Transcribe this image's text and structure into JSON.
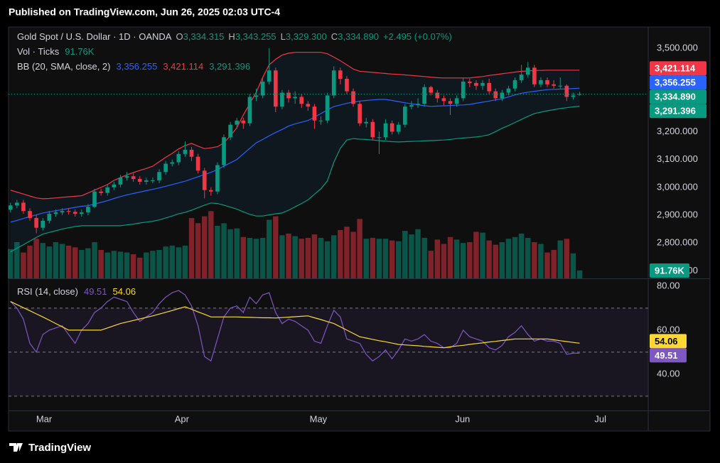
{
  "header": {
    "published": "Published on TradingView.com, Jun 26, 2025 02:03 UTC-4"
  },
  "chart_data": [
    {
      "type": "candlestick",
      "title": "Gold Spot / U.S. Dollar · 1D · OANDA",
      "legend_keys": [
        "O",
        "H",
        "L",
        "C"
      ],
      "ohlc_labels": {
        "open": "3,334.315",
        "high": "3,343.255",
        "low": "3,329.300"
      },
      "close_label": "3,334.890",
      "change": "+2.495 (+0.07%)",
      "up_color": "#089981",
      "down_color": "#f23645",
      "xlim": [
        -0.3,
        98.6
      ],
      "xticks": [
        {
          "value": 5.2,
          "label": "Mar"
        },
        {
          "value": 26.5,
          "label": "Apr"
        },
        {
          "value": 47.6,
          "label": "May"
        },
        {
          "value": 69.9,
          "label": "Jun"
        },
        {
          "value": 91.2,
          "label": "Jul"
        }
      ],
      "ylim": [
        2673,
        3571
      ],
      "yticks": [
        {
          "value": 2700,
          "label": "2,700.000"
        },
        {
          "value": 2800,
          "label": "2,800.000"
        },
        {
          "value": 2900,
          "label": "2,900.000"
        },
        {
          "value": 3000,
          "label": "3,000.000"
        },
        {
          "value": 3100,
          "label": "3,100.000"
        },
        {
          "value": 3200,
          "label": "3,200.000"
        },
        {
          "value": 3300,
          "label": "3,300.000"
        },
        {
          "value": 3400,
          "label": "3,400.000"
        },
        {
          "value": 3500,
          "label": "3,500.000"
        }
      ],
      "grid": false,
      "open": [
        2920,
        2935,
        2945,
        2915,
        2890,
        2855,
        2880,
        2905,
        2910,
        2915,
        2912,
        2905,
        2910,
        2930,
        2985,
        2980,
        3000,
        3010,
        3035,
        3040,
        3030,
        3020,
        3025,
        3025,
        3055,
        3085,
        3090,
        3120,
        3135,
        3110,
        3060,
        2990,
        2985,
        3080,
        3180,
        3225,
        3240,
        3230,
        3325,
        3330,
        3380,
        3420,
        3290,
        3340,
        3320,
        3325,
        3300,
        3290,
        3240,
        3240,
        3330,
        3420,
        3390,
        3345,
        3300,
        3230,
        3235,
        3180,
        3180,
        3230,
        3200,
        3225,
        3290,
        3295,
        3300,
        3360,
        3340,
        3320,
        3310,
        3300,
        3320,
        3380,
        3375,
        3365,
        3375,
        3345,
        3320,
        3340,
        3355,
        3385,
        3405,
        3430,
        3370,
        3385,
        3370,
        3365,
        3365,
        3325,
        3334.315
      ],
      "high": [
        2945,
        2955,
        2955,
        2925,
        2900,
        2890,
        2915,
        2920,
        2925,
        2925,
        2920,
        2920,
        2940,
        2995,
        2995,
        3010,
        3020,
        3045,
        3055,
        3050,
        3040,
        3035,
        3035,
        3065,
        3095,
        3100,
        3130,
        3165,
        3145,
        3120,
        3070,
        3000,
        3090,
        3190,
        3235,
        3250,
        3250,
        3335,
        3355,
        3395,
        3500,
        3430,
        3350,
        3350,
        3345,
        3335,
        3310,
        3300,
        3255,
        3340,
        3435,
        3430,
        3400,
        3355,
        3310,
        3250,
        3245,
        3200,
        3245,
        3240,
        3235,
        3300,
        3310,
        3320,
        3370,
        3365,
        3350,
        3330,
        3320,
        3330,
        3395,
        3390,
        3385,
        3385,
        3390,
        3355,
        3350,
        3365,
        3395,
        3440,
        3450,
        3440,
        3395,
        3395,
        3385,
        3395,
        3370,
        3340,
        3343.255
      ],
      "low": [
        2910,
        2925,
        2905,
        2880,
        2835,
        2845,
        2870,
        2895,
        2900,
        2902,
        2895,
        2895,
        2900,
        2925,
        2970,
        2970,
        2990,
        3000,
        3025,
        3020,
        3010,
        3010,
        3015,
        3015,
        3045,
        3075,
        3080,
        3110,
        3095,
        3050,
        2960,
        2970,
        2975,
        3070,
        3170,
        3210,
        3210,
        3220,
        3310,
        3320,
        3370,
        3270,
        3280,
        3305,
        3300,
        3285,
        3275,
        3210,
        3225,
        3230,
        3320,
        3370,
        3335,
        3290,
        3220,
        3215,
        3170,
        3120,
        3170,
        3190,
        3190,
        3215,
        3280,
        3285,
        3290,
        3330,
        3305,
        3295,
        3260,
        3290,
        3310,
        3360,
        3350,
        3350,
        3335,
        3310,
        3310,
        3330,
        3345,
        3375,
        3395,
        3360,
        3360,
        3360,
        3355,
        3355,
        3310,
        3315,
        3329.3
      ],
      "close": [
        2935,
        2945,
        2915,
        2890,
        2855,
        2880,
        2905,
        2910,
        2915,
        2912,
        2905,
        2910,
        2930,
        2985,
        2980,
        3000,
        3010,
        3035,
        3040,
        3030,
        3020,
        3025,
        3025,
        3055,
        3085,
        3090,
        3120,
        3135,
        3110,
        3060,
        2990,
        2985,
        3080,
        3180,
        3225,
        3240,
        3230,
        3325,
        3330,
        3380,
        3420,
        3290,
        3340,
        3320,
        3325,
        3300,
        3290,
        3240,
        3240,
        3330,
        3420,
        3390,
        3345,
        3300,
        3230,
        3235,
        3180,
        3180,
        3230,
        3200,
        3225,
        3290,
        3295,
        3300,
        3360,
        3340,
        3320,
        3310,
        3300,
        3320,
        3380,
        3375,
        3365,
        3375,
        3345,
        3320,
        3340,
        3355,
        3385,
        3405,
        3430,
        3370,
        3385,
        3370,
        3365,
        3365,
        3325,
        3330,
        3334.89
      ],
      "volume": {
        "label": "Vol · Ticks",
        "value_label": "91.76K",
        "ylim": [
          0,
          2900
        ],
        "up_color": "rgba(8,153,129,0.5)",
        "down_color": "rgba(242,54,69,0.5)",
        "values": [
          340,
          420,
          300,
          380,
          460,
          410,
          370,
          420,
          400,
          380,
          360,
          330,
          350,
          420,
          330,
          300,
          320,
          310,
          300,
          280,
          240,
          300,
          320,
          330,
          370,
          380,
          360,
          380,
          700,
          640,
          720,
          780,
          610,
          640,
          570,
          580,
          480,
          470,
          460,
          470,
          680,
          720,
          500,
          520,
          490,
          460,
          470,
          510,
          470,
          430,
          500,
          560,
          600,
          540,
          690,
          460,
          470,
          460,
          460,
          440,
          430,
          550,
          510,
          570,
          470,
          320,
          450,
          400,
          480,
          450,
          410,
          420,
          540,
          530,
          440,
          390,
          420,
          460,
          480,
          520,
          470,
          420,
          400,
          300,
          330,
          440,
          460,
          290,
          91.76
        ]
      },
      "bb": {
        "label": "BB (20, SMA, close, 2)",
        "basis": {
          "color": "#2962ff",
          "value_label": "3,356.255",
          "values": [
            2875,
            2881,
            2888,
            2895,
            2901,
            2908,
            2912,
            2916,
            2920,
            2924,
            2928,
            2932,
            2934,
            2940,
            2946,
            2952,
            2960,
            2967,
            2973,
            2978,
            2983,
            2988,
            2993,
            2998,
            3004,
            3010,
            3016,
            3022,
            3030,
            3038,
            3046,
            3054,
            3064,
            3076,
            3088,
            3100,
            3120,
            3140,
            3160,
            3172,
            3185,
            3197,
            3208,
            3220,
            3228,
            3234,
            3240,
            3252,
            3265,
            3278,
            3290,
            3296,
            3302,
            3306,
            3310,
            3312,
            3314,
            3316,
            3316,
            3312,
            3308,
            3304,
            3300,
            3297,
            3293,
            3291,
            3292,
            3293,
            3294,
            3295,
            3296,
            3298,
            3302,
            3306,
            3310,
            3314,
            3318,
            3325,
            3332,
            3338,
            3342,
            3345,
            3348,
            3351,
            3352,
            3353,
            3354,
            3355,
            3356.255
          ]
        },
        "upper": {
          "color": "#f23645",
          "value_label": "3,421.114",
          "values": [
            2990,
            2983,
            2976,
            2969,
            2962,
            2959,
            2960,
            2962,
            2964,
            2966,
            2968,
            2970,
            2980,
            2990,
            3000,
            3010,
            3025,
            3035,
            3045,
            3053,
            3061,
            3068,
            3076,
            3092,
            3108,
            3122,
            3138,
            3150,
            3158,
            3148,
            3139,
            3142,
            3146,
            3160,
            3185,
            3214,
            3260,
            3300,
            3342,
            3395,
            3440,
            3460,
            3475,
            3482,
            3485,
            3485,
            3485,
            3485,
            3485,
            3480,
            3468,
            3455,
            3440,
            3425,
            3417,
            3415,
            3413,
            3411,
            3409,
            3407,
            3406,
            3404,
            3402,
            3400,
            3398,
            3396,
            3394,
            3393,
            3393,
            3393,
            3393,
            3393,
            3396,
            3398,
            3402,
            3405,
            3408,
            3411,
            3414,
            3417,
            3418,
            3420,
            3420,
            3421,
            3421,
            3421,
            3421,
            3421,
            3421.114
          ]
        },
        "lower": {
          "color": "#089981",
          "value_label": "3,291.396",
          "values": [
            2768,
            2781,
            2794,
            2807,
            2820,
            2832,
            2838,
            2844,
            2850,
            2855,
            2859,
            2862,
            2862,
            2862,
            2862,
            2862,
            2862,
            2862,
            2865,
            2868,
            2872,
            2875,
            2878,
            2883,
            2890,
            2897,
            2905,
            2910,
            2918,
            2927,
            2936,
            2944,
            2942,
            2936,
            2929,
            2922,
            2912,
            2903,
            2897,
            2897,
            2901,
            2905,
            2908,
            2918,
            2930,
            2942,
            2955,
            2975,
            2995,
            3023,
            3090,
            3140,
            3170,
            3175,
            3173,
            3172,
            3170,
            3168,
            3166,
            3164,
            3163,
            3164,
            3165,
            3166,
            3167,
            3168,
            3169,
            3170,
            3172,
            3175,
            3177,
            3179,
            3181,
            3184,
            3189,
            3200,
            3212,
            3222,
            3233,
            3244,
            3255,
            3265,
            3270,
            3275,
            3279,
            3283,
            3286,
            3289,
            3291.396
          ]
        }
      }
    },
    {
      "type": "line",
      "title": "RSI (14, close)",
      "ylim": [
        23.5,
        83.2
      ],
      "yticks": [
        {
          "value": 40,
          "label": "40.00"
        },
        {
          "value": 60,
          "label": "60.00"
        },
        {
          "value": 80,
          "label": "80.00"
        }
      ],
      "bands": [
        70,
        50,
        30
      ],
      "series": [
        {
          "color": "#7e57c2",
          "value_label": "49.51",
          "values": [
            73,
            70,
            65,
            54,
            50,
            58,
            60,
            61,
            62,
            58,
            54,
            60,
            63,
            68,
            70,
            73,
            75,
            74,
            73,
            68,
            64,
            66,
            68,
            72,
            75,
            77,
            78,
            76,
            71,
            62,
            48,
            46,
            56,
            66,
            70,
            71,
            68,
            75,
            72,
            76,
            77,
            68,
            63,
            65,
            64,
            62,
            60,
            55,
            54,
            62,
            69,
            66,
            56,
            55,
            54,
            49,
            46,
            48,
            51,
            47,
            51,
            56,
            55,
            56,
            58,
            55,
            54,
            52,
            52,
            54,
            60,
            57,
            56,
            55,
            52,
            51,
            53,
            57,
            59,
            62,
            58,
            55,
            56,
            55,
            55,
            54,
            49,
            49.5,
            49.51
          ]
        },
        {
          "color": "#fdd835",
          "value_label": "54.06",
          "values": [
            73,
            71.6,
            70.2,
            68.8,
            67.4,
            66,
            64.5,
            63,
            61.5,
            60,
            60,
            60,
            60,
            60,
            60,
            61,
            62,
            63,
            63.7,
            64.4,
            65.1,
            65.8,
            66.5,
            67.3,
            68.1,
            68.9,
            69.8,
            70.6,
            69.5,
            68.3,
            67.2,
            66,
            66,
            66,
            66,
            66,
            65.9,
            65.8,
            65.7,
            65.6,
            65.6,
            65.5,
            65.7,
            65.9,
            66.1,
            66.3,
            66.5,
            65.6,
            64.8,
            63.9,
            63,
            61.5,
            60,
            58.5,
            57,
            56.4,
            55.8,
            55.2,
            54.7,
            54.1,
            53.5,
            53.3,
            53.1,
            52.9,
            52.6,
            52.4,
            52.2,
            52,
            52.4,
            52.8,
            53.1,
            53.5,
            53.9,
            54.2,
            54.6,
            54.9,
            55.3,
            55.6,
            56,
            56,
            56,
            56,
            56,
            56,
            55.6,
            55.2,
            54.8,
            54.4,
            54.06
          ]
        }
      ]
    }
  ],
  "footer": {
    "brand": "TradingView"
  }
}
